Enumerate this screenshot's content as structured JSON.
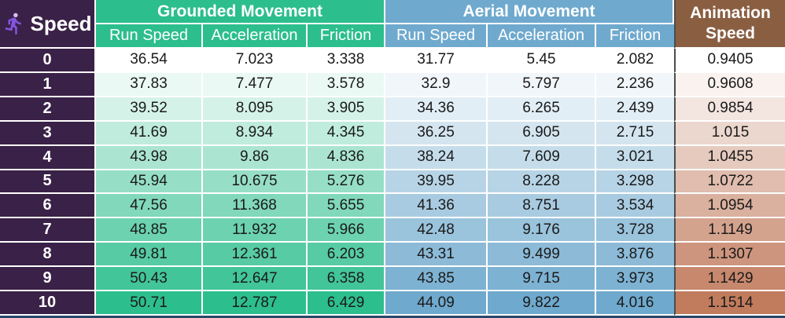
{
  "chart_data": {
    "type": "table",
    "title": "Speed",
    "row_header": "Speed",
    "groups": [
      {
        "label": "Grounded Movement",
        "columns": [
          "Run Speed",
          "Acceleration",
          "Friction"
        ]
      },
      {
        "label": "Aerial Movement",
        "columns": [
          "Run Speed",
          "Acceleration",
          "Friction"
        ]
      }
    ],
    "animation_header": "Animation Speed",
    "rows": [
      {
        "speed": "0",
        "grounded": [
          "36.54",
          "7.023",
          "3.338"
        ],
        "aerial": [
          "31.77",
          "5.45",
          "2.082"
        ],
        "animation": "0.9405"
      },
      {
        "speed": "1",
        "grounded": [
          "37.83",
          "7.477",
          "3.578"
        ],
        "aerial": [
          "32.9",
          "5.797",
          "2.236"
        ],
        "animation": "0.9608"
      },
      {
        "speed": "2",
        "grounded": [
          "39.52",
          "8.095",
          "3.905"
        ],
        "aerial": [
          "34.36",
          "6.265",
          "2.439"
        ],
        "animation": "0.9854"
      },
      {
        "speed": "3",
        "grounded": [
          "41.69",
          "8.934",
          "4.345"
        ],
        "aerial": [
          "36.25",
          "6.905",
          "2.715"
        ],
        "animation": "1.015"
      },
      {
        "speed": "4",
        "grounded": [
          "43.98",
          "9.86",
          "4.836"
        ],
        "aerial": [
          "38.24",
          "7.609",
          "3.021"
        ],
        "animation": "1.0455"
      },
      {
        "speed": "5",
        "grounded": [
          "45.94",
          "10.675",
          "5.276"
        ],
        "aerial": [
          "39.95",
          "8.228",
          "3.298"
        ],
        "animation": "1.0722"
      },
      {
        "speed": "6",
        "grounded": [
          "47.56",
          "11.368",
          "5.655"
        ],
        "aerial": [
          "41.36",
          "8.751",
          "3.534"
        ],
        "animation": "1.0954"
      },
      {
        "speed": "7",
        "grounded": [
          "48.85",
          "11.932",
          "5.966"
        ],
        "aerial": [
          "42.48",
          "9.176",
          "3.728"
        ],
        "animation": "1.1149"
      },
      {
        "speed": "8",
        "grounded": [
          "49.81",
          "12.361",
          "6.203"
        ],
        "aerial": [
          "43.31",
          "9.499",
          "3.876"
        ],
        "animation": "1.1307"
      },
      {
        "speed": "9",
        "grounded": [
          "50.43",
          "12.647",
          "6.358"
        ],
        "aerial": [
          "43.85",
          "9.715",
          "3.973"
        ],
        "animation": "1.1429"
      },
      {
        "speed": "10",
        "grounded": [
          "50.71",
          "12.787",
          "6.429"
        ],
        "aerial": [
          "44.09",
          "9.822",
          "4.016"
        ],
        "animation": "1.1514"
      }
    ],
    "heatmap": "rows shade from white at Speed 0 to full column color at Speed 10"
  },
  "colors": {
    "purple": "#3A2147",
    "green": "#2CBE8D",
    "blue": "#6FA9CE",
    "brown": "#8A5E41",
    "row_green": "#2DBE8D",
    "row_blue": "#6FA9CD",
    "row_brown": "#C17B5D",
    "navy": "#27486B",
    "grid_line": "#FFFFFF",
    "dark_border": "#4C4C4C",
    "text": "#1A1A1A",
    "icon_purple": "#8455E0",
    "icon_head": "#D3BFF4"
  }
}
